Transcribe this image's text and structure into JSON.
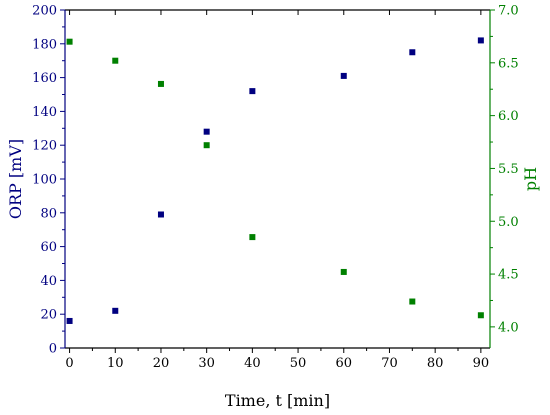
{
  "chart_data": {
    "type": "scatter",
    "xlabel": "Time, t [min]",
    "ylabel_left": "ORP [mV]",
    "ylabel_right": "pH",
    "xlim": [
      -1,
      92
    ],
    "ylim_left": [
      0,
      200
    ],
    "ylim_right": [
      3.8,
      7.0
    ],
    "x_ticks": [
      "0",
      "10",
      "20",
      "30",
      "40",
      "50",
      "60",
      "70",
      "80",
      "90"
    ],
    "y_left_ticks": [
      "0",
      "20",
      "40",
      "60",
      "80",
      "100",
      "120",
      "140",
      "160",
      "180",
      "200"
    ],
    "y_right_ticks": [
      "4.0",
      "4.5",
      "5.0",
      "5.5",
      "6.0",
      "6.5",
      "7.0"
    ],
    "grid": false,
    "series": [
      {
        "axis": "left",
        "color": "#000080",
        "x": [
          0,
          10,
          20,
          30,
          40,
          60,
          75,
          90
        ],
        "y": [
          16,
          22,
          79,
          128,
          152,
          161,
          175,
          182
        ]
      },
      {
        "axis": "right",
        "color": "#008000",
        "x": [
          0,
          10,
          20,
          30,
          40,
          60,
          75,
          90
        ],
        "y": [
          6.7,
          6.52,
          6.3,
          5.72,
          4.85,
          4.52,
          4.24,
          4.11
        ]
      }
    ],
    "colors": {
      "left_axis": "#000080",
      "right_axis": "#008000",
      "bottom_axis": "#000000"
    }
  }
}
